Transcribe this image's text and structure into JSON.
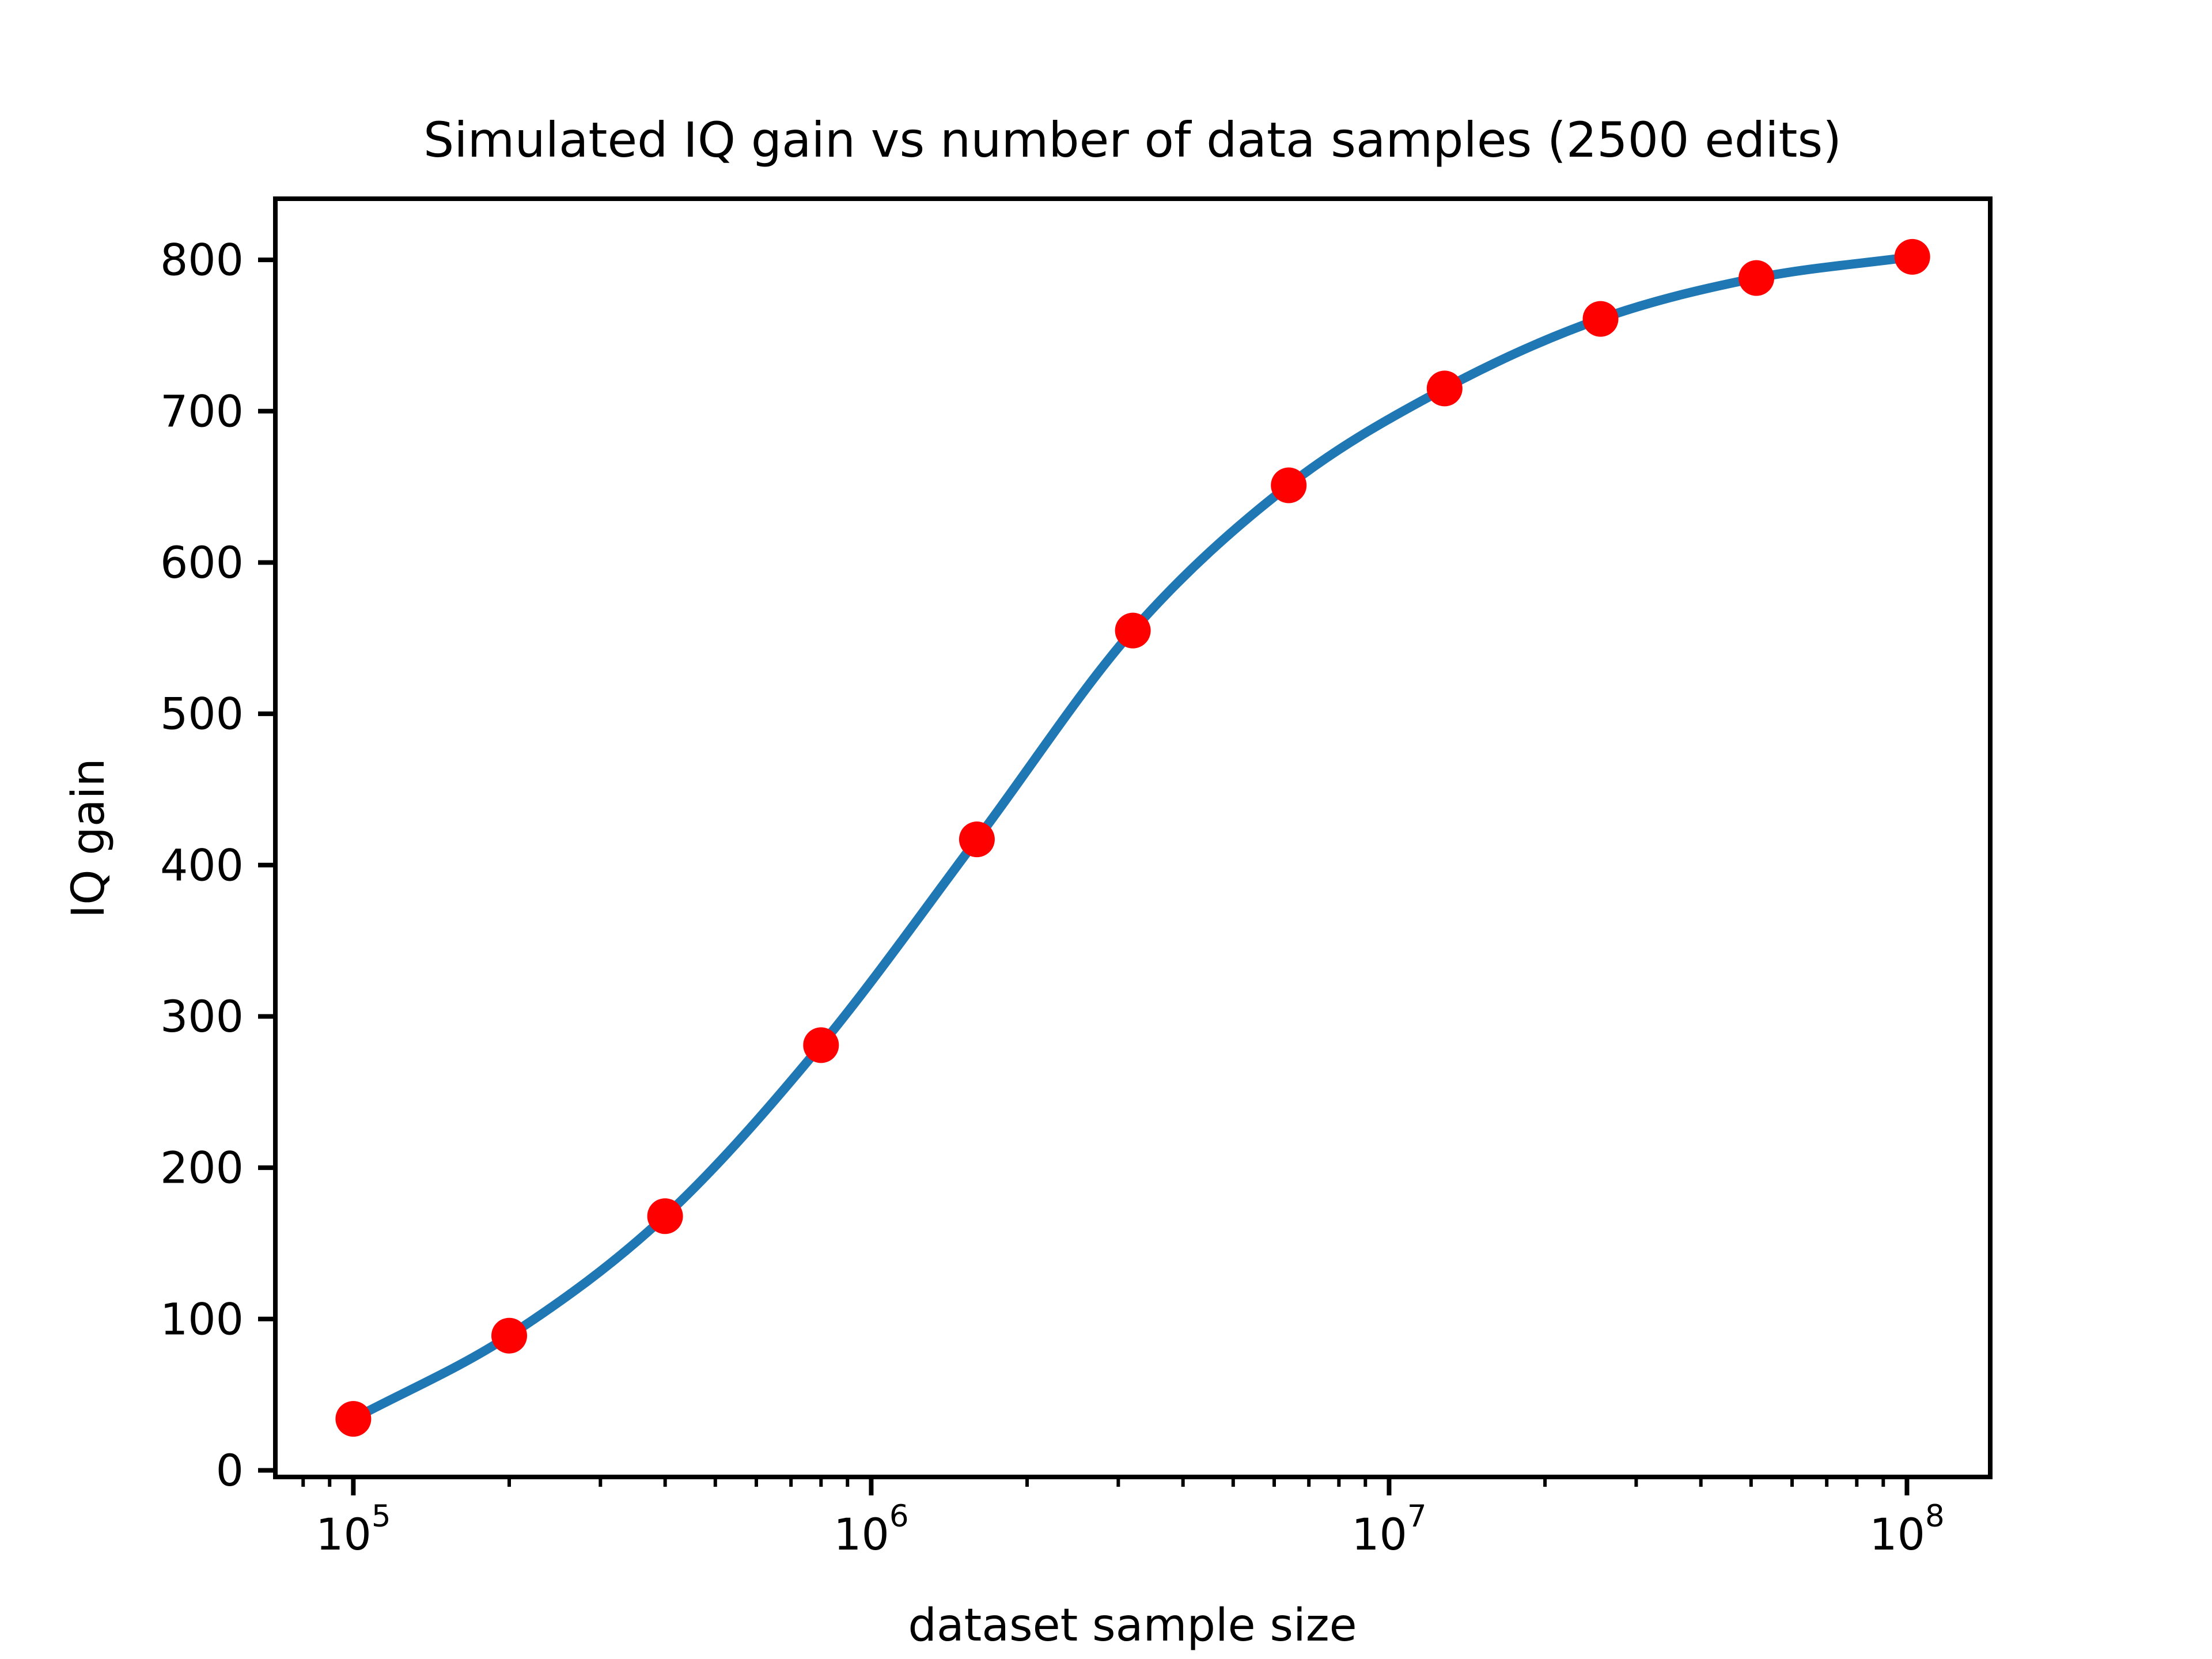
{
  "figure": {
    "background": "#ffffff"
  },
  "chart_data": {
    "type": "line",
    "title": "Simulated IQ gain vs number of data samples (2500 edits)",
    "xlabel": "dataset sample size",
    "ylabel": "IQ gain",
    "x_scale": "log10",
    "grid": false,
    "legend": null,
    "x": [
      100000,
      200000,
      400000,
      800000,
      1600000,
      3200000,
      6400000,
      12800000,
      25600000,
      51200000,
      102400000
    ],
    "series": [
      {
        "name": "IQ gain",
        "values": [
          34,
          89,
          168,
          281,
          417,
          555,
          651,
          715,
          761,
          788,
          802
        ]
      }
    ],
    "xlim": [
      70700,
      144800000
    ],
    "ylim": [
      -4.4,
      840.4
    ],
    "y_ticks": [
      0,
      100,
      200,
      300,
      400,
      500,
      600,
      700,
      800
    ],
    "x_major_ticks": [
      {
        "value": 100000,
        "base": "10",
        "exp": "5"
      },
      {
        "value": 1000000,
        "base": "10",
        "exp": "6"
      },
      {
        "value": 10000000,
        "base": "10",
        "exp": "7"
      },
      {
        "value": 100000000,
        "base": "10",
        "exp": "8"
      }
    ],
    "x_minor_tick_subs": [
      2,
      3,
      4,
      5,
      6,
      7,
      8,
      9
    ],
    "colors": {
      "line": "#1f77b4",
      "marker": "#ff0000",
      "axis": "#000000",
      "text": "#000000"
    }
  }
}
